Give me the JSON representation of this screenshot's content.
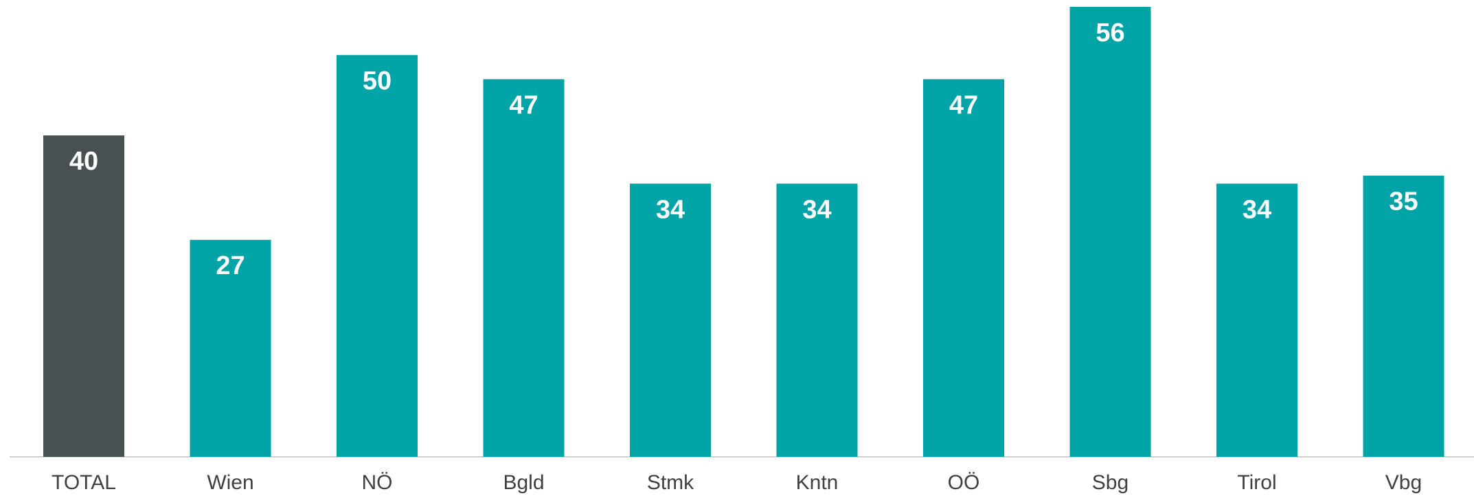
{
  "chart_data": {
    "type": "bar",
    "categories": [
      "TOTAL",
      "Wien",
      "NÖ",
      "Bgld",
      "Stmk",
      "Kntn",
      "OÖ",
      "Sbg",
      "Tirol",
      "Vbg"
    ],
    "values": [
      40,
      27,
      50,
      47,
      34,
      34,
      47,
      56,
      34,
      35
    ],
    "colors": [
      "#475152",
      "#00a3a6",
      "#00a3a6",
      "#00a3a6",
      "#00a3a6",
      "#00a3a6",
      "#00a3a6",
      "#00a3a6",
      "#00a3a6",
      "#00a3a6"
    ],
    "ylim": [
      0,
      56
    ]
  }
}
